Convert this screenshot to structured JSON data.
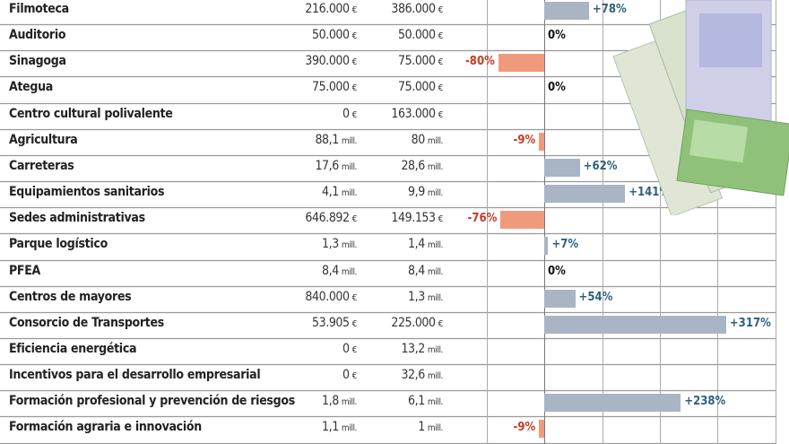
{
  "chart_data": {
    "type": "bar",
    "orientation": "horizontal",
    "title": "",
    "xlabel": "",
    "ylabel": "",
    "xlim": [
      -100,
      400
    ],
    "grid": true,
    "rows": [
      {
        "name": "Filmoteca",
        "v1": "216.000",
        "u1": "€",
        "v2": "386.000",
        "u2": "€",
        "change": 78,
        "label": "+78%"
      },
      {
        "name": "Auditorio",
        "v1": "50.000",
        "u1": "€",
        "v2": "50.000",
        "u2": "€",
        "change": 0,
        "label": "0%"
      },
      {
        "name": "Sinagoga",
        "v1": "390.000",
        "u1": "€",
        "v2": "75.000",
        "u2": "€",
        "change": -80,
        "label": "-80%"
      },
      {
        "name": "Ategua",
        "v1": "75.000",
        "u1": "€",
        "v2": "75.000",
        "u2": "€",
        "change": 0,
        "label": "0%"
      },
      {
        "name": "Centro cultural polivalente",
        "v1": "0",
        "u1": "€",
        "v2": "163.000",
        "u2": "€",
        "change": null,
        "label": ""
      },
      {
        "name": "Agricultura",
        "v1": "88,1",
        "u1": "mill.",
        "v2": "80",
        "u2": "mill.",
        "change": -9,
        "label": "-9%"
      },
      {
        "name": "Carreteras",
        "v1": "17,6",
        "u1": "mill.",
        "v2": "28,6",
        "u2": "mill.",
        "change": 62,
        "label": "+62%"
      },
      {
        "name": "Equipamientos sanitarios",
        "v1": "4,1",
        "u1": "mill.",
        "v2": "9,9",
        "u2": "mill.",
        "change": 141,
        "label": "+141%"
      },
      {
        "name": "Sedes  administrativas",
        "v1": "646.892",
        "u1": "€",
        "v2": "149.153",
        "u2": "€",
        "change": -76,
        "label": "-76%"
      },
      {
        "name": "Parque logístico",
        "v1": "1,3",
        "u1": "mill.",
        "v2": "1,4",
        "u2": "mill.",
        "change": 7,
        "label": "+7%"
      },
      {
        "name": "PFEA",
        "v1": "8,4",
        "u1": "mill.",
        "v2": "8,4",
        "u2": "mill.",
        "change": 0,
        "label": "0%"
      },
      {
        "name": "Centros de mayores",
        "v1": "840.000",
        "u1": "€",
        "v2": "1,3",
        "u2": "mill.",
        "change": 54,
        "label": "+54%"
      },
      {
        "name": "Consorcio de Transportes",
        "v1": "53.905",
        "u1": "€",
        "v2": "225.000",
        "u2": "€",
        "change": 317,
        "label": "+317%"
      },
      {
        "name": "Eficiencia energética",
        "v1": "0",
        "u1": "€",
        "v2": "13,2",
        "u2": "mill.",
        "change": null,
        "label": ""
      },
      {
        "name": "Incentivos para el desarrollo empresarial",
        "v1": "0",
        "u1": "€",
        "v2": "32,6",
        "u2": "mill.",
        "change": null,
        "label": ""
      },
      {
        "name": "Formación profesional y prevención de riesgos",
        "v1": "1,8",
        "u1": "mill.",
        "v2": "6,1",
        "u2": "mill.",
        "change": 238,
        "label": "+238%"
      },
      {
        "name": "Formación agraria e innovación",
        "v1": "1,1",
        "u1": "mill.",
        "v2": "1",
        "u2": "mill.",
        "change": -9,
        "label": "-9%"
      }
    ],
    "colors": {
      "positive": "#a9b5c5",
      "negative": "#f09a7d",
      "positive_text": "#2d5f7f",
      "negative_text": "#c23b22"
    }
  }
}
